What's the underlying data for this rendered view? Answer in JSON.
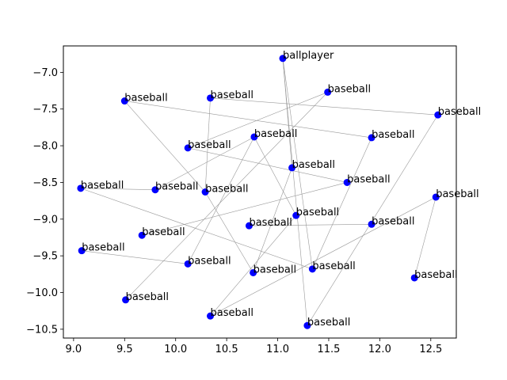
{
  "chart_data": {
    "type": "scatter",
    "title": "",
    "xlabel": "",
    "ylabel": "",
    "xlim": [
      8.9,
      12.75
    ],
    "ylim": [
      -10.62,
      -6.64
    ],
    "xticks": [
      9.0,
      9.5,
      10.0,
      10.5,
      11.0,
      11.5,
      12.0,
      12.5
    ],
    "xtick_labels": [
      "9.0",
      "9.5",
      "10.0",
      "10.5",
      "11.0",
      "11.5",
      "12.0",
      "12.5"
    ],
    "yticks": [
      -7.0,
      -7.5,
      -8.0,
      -8.5,
      -9.0,
      -9.5,
      -10.0,
      -10.5
    ],
    "ytick_labels": [
      "−7.0",
      "−7.5",
      "−8.0",
      "−8.5",
      "−9.0",
      "−9.5",
      "−10.0",
      "−10.5"
    ],
    "grid": false,
    "point_color": "#0000ff",
    "edge_color": "#999999",
    "points": [
      {
        "x": 11.05,
        "y": -6.81,
        "label": "ballplayer"
      },
      {
        "x": 11.49,
        "y": -7.27,
        "label": "baseball"
      },
      {
        "x": 10.34,
        "y": -7.35,
        "label": "baseball"
      },
      {
        "x": 9.5,
        "y": -7.39,
        "label": "baseball"
      },
      {
        "x": 12.57,
        "y": -7.58,
        "label": "baseball"
      },
      {
        "x": 10.77,
        "y": -7.88,
        "label": "baseball"
      },
      {
        "x": 11.92,
        "y": -7.89,
        "label": "baseball"
      },
      {
        "x": 10.12,
        "y": -8.03,
        "label": "baseball"
      },
      {
        "x": 11.14,
        "y": -8.3,
        "label": "baseball"
      },
      {
        "x": 11.68,
        "y": -8.5,
        "label": "baseball"
      },
      {
        "x": 9.07,
        "y": -8.58,
        "label": "baseball"
      },
      {
        "x": 9.8,
        "y": -8.6,
        "label": "baseball"
      },
      {
        "x": 10.29,
        "y": -8.63,
        "label": "baseball"
      },
      {
        "x": 12.55,
        "y": -8.7,
        "label": "baseball"
      },
      {
        "x": 11.18,
        "y": -8.95,
        "label": "baseball"
      },
      {
        "x": 10.72,
        "y": -9.09,
        "label": "baseball"
      },
      {
        "x": 11.92,
        "y": -9.07,
        "label": "baseball"
      },
      {
        "x": 9.67,
        "y": -9.22,
        "label": "baseball"
      },
      {
        "x": 9.08,
        "y": -9.43,
        "label": "baseball"
      },
      {
        "x": 10.12,
        "y": -9.61,
        "label": "baseball"
      },
      {
        "x": 11.34,
        "y": -9.68,
        "label": "baseball"
      },
      {
        "x": 10.76,
        "y": -9.73,
        "label": "baseball"
      },
      {
        "x": 12.34,
        "y": -9.8,
        "label": "baseball"
      },
      {
        "x": 9.51,
        "y": -10.1,
        "label": "baseball"
      },
      {
        "x": 10.34,
        "y": -10.32,
        "label": "baseball"
      },
      {
        "x": 11.29,
        "y": -10.45,
        "label": "baseball"
      }
    ],
    "edges": [
      [
        0,
        8
      ],
      [
        0,
        25
      ],
      [
        0,
        20
      ],
      [
        1,
        7
      ],
      [
        1,
        23
      ],
      [
        2,
        12
      ],
      [
        2,
        4
      ],
      [
        3,
        12
      ],
      [
        3,
        6
      ],
      [
        4,
        25
      ],
      [
        5,
        11
      ],
      [
        5,
        19
      ],
      [
        7,
        9
      ],
      [
        8,
        21
      ],
      [
        10,
        11
      ],
      [
        10,
        20
      ],
      [
        12,
        21
      ],
      [
        13,
        22
      ],
      [
        13,
        24
      ],
      [
        14,
        24
      ],
      [
        15,
        16
      ],
      [
        17,
        9
      ],
      [
        18,
        19
      ],
      [
        14,
        5
      ],
      [
        6,
        20
      ]
    ]
  }
}
